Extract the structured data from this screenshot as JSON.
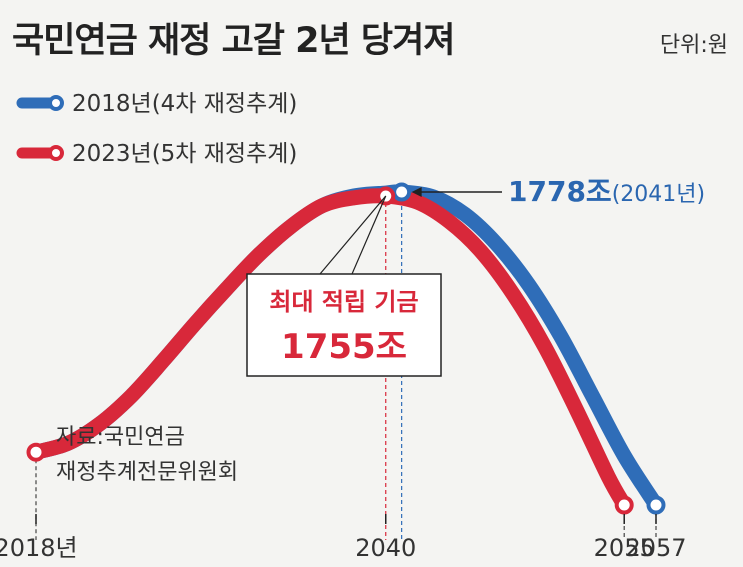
{
  "chart_data": {
    "type": "line",
    "title": "국민연금 재정 고갈 2년 당겨져",
    "unit_label": "단위:원",
    "source_line1": "자료:국민연금",
    "source_line2": "재정추계전문위원회",
    "x_tick_labels": [
      "2018년",
      "2040",
      "2055",
      "2057"
    ],
    "x_tick_values": [
      2018,
      2040,
      2055,
      2057
    ],
    "xlim": [
      2018,
      2057
    ],
    "colors": {
      "blue": "#2f6db8",
      "red": "#d8283a"
    },
    "series": [
      {
        "name": "2018년(4차 재정추계)",
        "color": "#2f6db8",
        "x": [
          2018,
          2020,
          2022,
          2024,
          2026,
          2028,
          2030,
          2032,
          2034,
          2036,
          2038,
          2040,
          2041,
          2043,
          2045,
          2047,
          2049,
          2051,
          2053,
          2055,
          2057
        ],
        "y": [
          300,
          350,
          460,
          620,
          820,
          1030,
          1230,
          1420,
          1580,
          1700,
          1755,
          1772,
          1778,
          1750,
          1650,
          1480,
          1250,
          960,
          620,
          280,
          0
        ]
      },
      {
        "name": "2023년(5차 재정추계)",
        "color": "#d8283a",
        "x": [
          2018,
          2020,
          2022,
          2024,
          2026,
          2028,
          2030,
          2032,
          2034,
          2036,
          2038,
          2040,
          2042,
          2044,
          2046,
          2048,
          2050,
          2052,
          2054,
          2055
        ],
        "y": [
          300,
          350,
          460,
          620,
          820,
          1030,
          1230,
          1420,
          1580,
          1700,
          1745,
          1755,
          1720,
          1610,
          1440,
          1200,
          900,
          540,
          160,
          0
        ]
      }
    ],
    "annotations": [
      {
        "label": "1778조",
        "sub": "(2041년)",
        "x": 2041,
        "y": 1778
      },
      {
        "label": "최대 적립 기금",
        "value": "1755조",
        "x": 2040,
        "y": 1755
      }
    ]
  }
}
